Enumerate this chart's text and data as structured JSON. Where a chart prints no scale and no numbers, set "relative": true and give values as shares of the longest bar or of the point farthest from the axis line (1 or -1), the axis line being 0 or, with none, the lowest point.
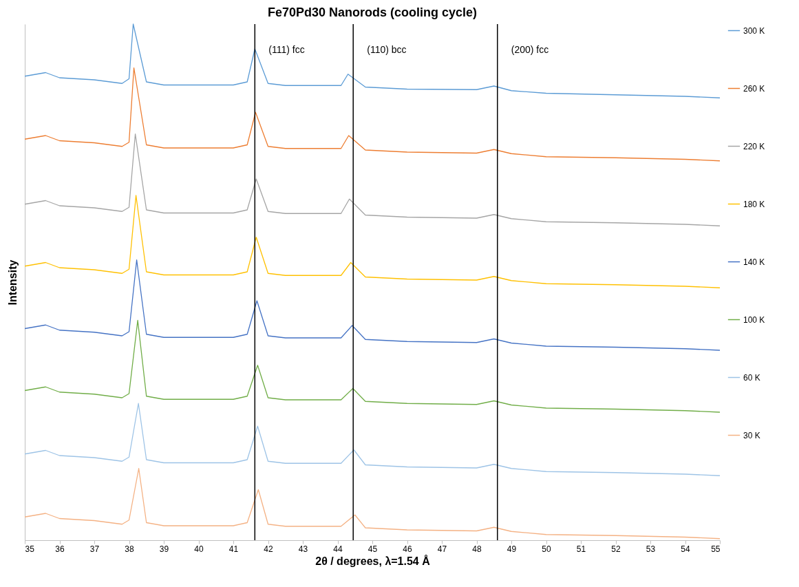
{
  "chart_data": {
    "type": "line",
    "title": "Fe70Pd30 Nanorods (cooling cycle)",
    "xlabel": "2θ / degrees, λ=1.54 Å",
    "ylabel": "Intensity",
    "relative": true,
    "xlim": [
      35,
      55
    ],
    "xticks": [
      35,
      36,
      37,
      38,
      39,
      40,
      41,
      42,
      43,
      44,
      45,
      46,
      47,
      48,
      49,
      50,
      51,
      52,
      53,
      54,
      55
    ],
    "legend": "right",
    "series": [
      {
        "name": "300 K",
        "color": "#5b9bd5",
        "x": [
          35,
          35.6,
          36,
          37,
          37.8,
          38.0,
          38.12,
          38.5,
          39,
          40,
          41,
          41.4,
          41.62,
          42.0,
          42.5,
          43.5,
          44.1,
          44.3,
          44.8,
          46,
          48,
          48.5,
          49,
          50,
          52,
          54,
          55
        ],
        "values": [
          0.899,
          0.906,
          0.896,
          0.892,
          0.885,
          0.894,
          1.0,
          0.888,
          0.882,
          0.882,
          0.882,
          0.888,
          0.952,
          0.885,
          0.881,
          0.881,
          0.881,
          0.903,
          0.878,
          0.874,
          0.873,
          0.88,
          0.871,
          0.866,
          0.863,
          0.86,
          0.857
        ]
      },
      {
        "name": "260 K",
        "color": "#ed7d31",
        "x": [
          35,
          35.6,
          36,
          37,
          37.8,
          38.0,
          38.14,
          38.5,
          39,
          40,
          41,
          41.4,
          41.64,
          42.0,
          42.5,
          43.5,
          44.1,
          44.32,
          44.8,
          46,
          48,
          48.5,
          49,
          50,
          52,
          54,
          55
        ],
        "values": [
          0.777,
          0.784,
          0.774,
          0.77,
          0.763,
          0.771,
          0.915,
          0.766,
          0.76,
          0.76,
          0.76,
          0.766,
          0.829,
          0.763,
          0.759,
          0.759,
          0.759,
          0.784,
          0.756,
          0.752,
          0.75,
          0.757,
          0.749,
          0.743,
          0.741,
          0.738,
          0.735
        ]
      },
      {
        "name": "220 K",
        "color": "#a5a5a5",
        "x": [
          35,
          35.6,
          36,
          37,
          37.8,
          38.0,
          38.18,
          38.5,
          39,
          40,
          41,
          41.4,
          41.66,
          42.0,
          42.5,
          43.5,
          44.1,
          44.34,
          44.8,
          46,
          48,
          48.5,
          49,
          50,
          52,
          54,
          55
        ],
        "values": [
          0.651,
          0.658,
          0.648,
          0.644,
          0.637,
          0.645,
          0.787,
          0.64,
          0.634,
          0.634,
          0.634,
          0.64,
          0.7,
          0.637,
          0.633,
          0.633,
          0.633,
          0.661,
          0.63,
          0.626,
          0.624,
          0.631,
          0.623,
          0.617,
          0.615,
          0.612,
          0.609
        ]
      },
      {
        "name": "180 K",
        "color": "#ffc000",
        "x": [
          35,
          35.6,
          36,
          37,
          37.8,
          38.0,
          38.2,
          38.5,
          39,
          40,
          41,
          41.4,
          41.66,
          42.0,
          42.5,
          43.5,
          44.1,
          44.38,
          44.8,
          46,
          48,
          48.5,
          49,
          50,
          52,
          54,
          55
        ],
        "values": [
          0.531,
          0.538,
          0.528,
          0.524,
          0.517,
          0.525,
          0.668,
          0.52,
          0.514,
          0.514,
          0.514,
          0.52,
          0.587,
          0.517,
          0.513,
          0.513,
          0.513,
          0.538,
          0.51,
          0.506,
          0.504,
          0.511,
          0.503,
          0.497,
          0.495,
          0.492,
          0.489
        ]
      },
      {
        "name": "140 K",
        "color": "#4472c4",
        "x": [
          35,
          35.6,
          36,
          37,
          37.8,
          38.0,
          38.22,
          38.5,
          39,
          40,
          41,
          41.4,
          41.68,
          42.0,
          42.5,
          43.5,
          44.1,
          44.42,
          44.8,
          46,
          48,
          48.5,
          49,
          50,
          52,
          54,
          55
        ],
        "values": [
          0.41,
          0.417,
          0.407,
          0.403,
          0.396,
          0.404,
          0.543,
          0.399,
          0.393,
          0.393,
          0.393,
          0.399,
          0.464,
          0.396,
          0.392,
          0.392,
          0.392,
          0.416,
          0.389,
          0.385,
          0.383,
          0.39,
          0.382,
          0.376,
          0.374,
          0.371,
          0.368
        ]
      },
      {
        "name": "100 K",
        "color": "#70ad47",
        "x": [
          35,
          35.6,
          36,
          37,
          37.8,
          38.0,
          38.25,
          38.5,
          39,
          40,
          41,
          41.4,
          41.7,
          42.0,
          42.5,
          43.5,
          44.1,
          44.44,
          44.8,
          46,
          48,
          48.5,
          49,
          50,
          52,
          54,
          55
        ],
        "values": [
          0.29,
          0.297,
          0.287,
          0.283,
          0.276,
          0.284,
          0.426,
          0.279,
          0.273,
          0.273,
          0.273,
          0.279,
          0.339,
          0.276,
          0.272,
          0.272,
          0.272,
          0.294,
          0.269,
          0.265,
          0.263,
          0.27,
          0.262,
          0.256,
          0.254,
          0.251,
          0.248
        ]
      },
      {
        "name": "60 K",
        "color": "#9dc3e6",
        "x": [
          35,
          35.6,
          36,
          37,
          37.8,
          38.0,
          38.27,
          38.5,
          39,
          40,
          41,
          41.4,
          41.7,
          42.0,
          42.5,
          43.5,
          44.1,
          44.47,
          44.8,
          46,
          48,
          48.5,
          49,
          50,
          52,
          54,
          55
        ],
        "values": [
          0.167,
          0.174,
          0.164,
          0.16,
          0.153,
          0.161,
          0.265,
          0.156,
          0.15,
          0.15,
          0.15,
          0.156,
          0.221,
          0.153,
          0.149,
          0.149,
          0.149,
          0.175,
          0.146,
          0.142,
          0.14,
          0.147,
          0.139,
          0.133,
          0.131,
          0.128,
          0.125
        ]
      },
      {
        "name": "30 K",
        "color": "#f4b183",
        "x": [
          35,
          35.6,
          36,
          37,
          37.8,
          38.0,
          38.28,
          38.5,
          39,
          40,
          41,
          41.4,
          41.72,
          42.0,
          42.5,
          43.5,
          44.1,
          44.5,
          44.8,
          46,
          48,
          48.5,
          49,
          50,
          52,
          54,
          55
        ],
        "values": [
          0.045,
          0.052,
          0.042,
          0.038,
          0.031,
          0.039,
          0.139,
          0.034,
          0.028,
          0.028,
          0.028,
          0.034,
          0.098,
          0.031,
          0.027,
          0.027,
          0.027,
          0.049,
          0.024,
          0.02,
          0.018,
          0.025,
          0.017,
          0.011,
          0.009,
          0.006,
          0.003
        ]
      }
    ],
    "ref_lines": [
      {
        "axis": "x",
        "value": 41.62,
        "label": "(111) fcc",
        "color": "#000000"
      },
      {
        "axis": "x",
        "value": 44.45,
        "label": "(110) bcc",
        "color": "#000000"
      },
      {
        "axis": "x",
        "value": 48.6,
        "label": "(200) fcc",
        "color": "#000000"
      }
    ]
  }
}
